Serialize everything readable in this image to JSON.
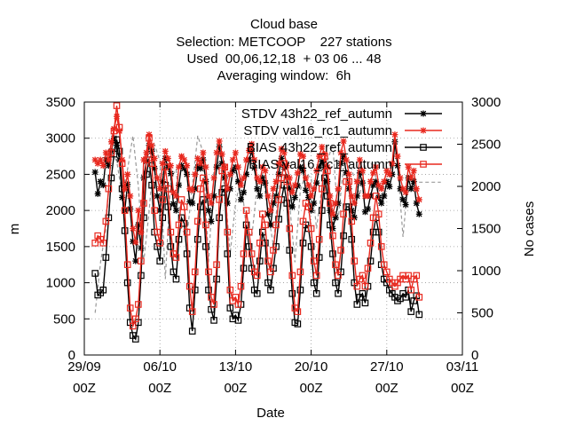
{
  "title_lines": [
    "Cloud base",
    "Selection: METCOOP    227 stations",
    "Used  00,06,12,18  + 03 06 ... 48",
    "Averaging window:  6h"
  ],
  "chart_data": {
    "type": "line",
    "xlabel": "Date",
    "ylabel": "m",
    "y2label": "No cases",
    "x_start": "2017-09-29 00Z",
    "x_end": "2017-11-03 00Z",
    "x_ticks": [
      {
        "date": "29/09",
        "time": "00Z",
        "day": 0
      },
      {
        "date": "06/10",
        "time": "00Z",
        "day": 7
      },
      {
        "date": "13/10",
        "time": "00Z",
        "day": 14
      },
      {
        "date": "20/10",
        "time": "00Z",
        "day": 21
      },
      {
        "date": "27/10",
        "time": "00Z",
        "day": 28
      },
      {
        "date": "03/11",
        "time": "00Z",
        "day": 35
      }
    ],
    "ylim": [
      0,
      3500
    ],
    "yticks": [
      0,
      500,
      1000,
      1500,
      2000,
      2500,
      3000,
      3500
    ],
    "y2lim": [
      0,
      3000
    ],
    "y2ticks": [
      0,
      500,
      1000,
      1500,
      2000,
      2500,
      3000
    ],
    "grid": true,
    "legend_position": "top-right",
    "series": [
      {
        "name": "STDV 43h22_ref_autumn",
        "color": "#000000",
        "marker": "star",
        "axis": "y",
        "x": [
          1.0,
          1.25,
          1.5,
          1.75,
          2.0,
          2.25,
          2.5,
          2.75,
          3.0,
          3.25,
          3.5,
          3.75,
          4.0,
          4.25,
          4.5,
          4.75,
          5.0,
          5.25,
          5.5,
          5.75,
          6.0,
          6.25,
          6.5,
          6.75,
          7.0,
          7.25,
          7.5,
          7.75,
          8.0,
          8.25,
          8.5,
          8.75,
          9.0,
          9.25,
          9.5,
          9.75,
          10.0,
          10.25,
          10.5,
          10.75,
          11.0,
          11.25,
          11.5,
          11.75,
          12.0,
          12.25,
          12.5,
          12.75,
          13.0,
          13.25,
          13.5,
          13.75,
          14.0,
          14.25,
          14.5,
          14.75,
          15.0,
          15.25,
          15.5,
          15.75,
          16.0,
          16.25,
          16.5,
          16.75,
          17.0,
          17.25,
          17.5,
          17.75,
          18.0,
          18.25,
          18.5,
          18.75,
          19.0,
          19.25,
          19.5,
          19.75,
          20.0,
          20.25,
          20.5,
          20.75,
          21.0,
          21.25,
          21.5,
          21.75,
          22.0,
          22.25,
          22.5,
          22.75,
          23.0,
          23.25,
          23.5,
          23.75,
          24.0,
          24.25,
          24.5,
          24.75,
          25.0,
          25.25,
          25.5,
          25.75,
          26.0,
          26.25,
          26.5,
          26.75,
          27.0,
          27.25,
          27.5,
          27.75,
          28.0,
          28.25,
          28.5,
          28.75,
          29.0,
          29.25,
          29.5,
          29.75,
          30.0,
          30.25,
          30.5,
          30.75,
          31.0
        ],
        "values": [
          2530,
          2230,
          2400,
          2350,
          2700,
          2620,
          2820,
          3000,
          2900,
          2700,
          2180,
          2000,
          2360,
          2020,
          1570,
          1300,
          1800,
          1480,
          2450,
          2680,
          2900,
          2820,
          2580,
          2200,
          2000,
          2400,
          2720,
          2600,
          2510,
          2090,
          2000,
          2350,
          2620,
          2580,
          2500,
          2120,
          2100,
          2300,
          2600,
          2580,
          2700,
          2400,
          2000,
          1850,
          2200,
          2600,
          2880,
          2650,
          2450,
          2100,
          2300,
          2550,
          2600,
          2400,
          2150,
          2250,
          2500,
          2700,
          2820,
          2590,
          2300,
          2200,
          2450,
          2380,
          1950,
          1800,
          2100,
          2200,
          2500,
          2720,
          2600,
          2460,
          2300,
          2050,
          2180,
          2340,
          2600,
          2550,
          2280,
          2180,
          2000,
          2100,
          2380,
          2600,
          2680,
          2600,
          2400,
          2000,
          1750,
          1900,
          2100,
          2650,
          2750,
          2520,
          2300,
          2000,
          1900,
          2200,
          2520,
          2380,
          1980,
          2020,
          2200,
          2350,
          2400,
          2180,
          2100,
          2200,
          2400,
          2330,
          2500,
          2950,
          2620,
          2300,
          2150,
          2080,
          2450,
          2300,
          2400,
          2100,
          1950
        ]
      },
      {
        "name": "STDV val16_rc1_autumn",
        "color": "#e8281e",
        "marker": "star",
        "axis": "y",
        "x": [
          1.0,
          1.25,
          1.5,
          1.75,
          2.0,
          2.25,
          2.5,
          2.75,
          3.0,
          3.25,
          3.5,
          3.75,
          4.0,
          4.25,
          4.5,
          4.75,
          5.0,
          5.25,
          5.5,
          5.75,
          6.0,
          6.25,
          6.5,
          6.75,
          7.0,
          7.25,
          7.5,
          7.75,
          8.0,
          8.25,
          8.5,
          8.75,
          9.0,
          9.25,
          9.5,
          9.75,
          10.0,
          10.25,
          10.5,
          10.75,
          11.0,
          11.25,
          11.5,
          11.75,
          12.0,
          12.25,
          12.5,
          12.75,
          13.0,
          13.25,
          13.5,
          13.75,
          14.0,
          14.25,
          14.5,
          14.75,
          15.0,
          15.25,
          15.5,
          15.75,
          16.0,
          16.25,
          16.5,
          16.75,
          17.0,
          17.25,
          17.5,
          17.75,
          18.0,
          18.25,
          18.5,
          18.75,
          19.0,
          19.25,
          19.5,
          19.75,
          20.0,
          20.25,
          20.5,
          20.75,
          21.0,
          21.25,
          21.5,
          21.75,
          22.0,
          22.25,
          22.5,
          22.75,
          23.0,
          23.25,
          23.5,
          23.75,
          24.0,
          24.25,
          24.5,
          24.75,
          25.0,
          25.25,
          25.5,
          25.75,
          26.0,
          26.25,
          26.5,
          26.75,
          27.0,
          27.25,
          27.5,
          27.75,
          28.0,
          28.25,
          28.5,
          28.75,
          29.0,
          29.25,
          29.5,
          29.75,
          30.0,
          30.25,
          30.5,
          30.75,
          31.0
        ],
        "values": [
          2700,
          2650,
          2700,
          2620,
          2800,
          2700,
          2950,
          3130,
          3300,
          3100,
          2700,
          2300,
          2500,
          2200,
          1750,
          1560,
          2000,
          1700,
          2700,
          2800,
          3050,
          2900,
          2720,
          2450,
          2300,
          2650,
          2820,
          2720,
          2620,
          2250,
          2200,
          2600,
          2750,
          2700,
          2620,
          2300,
          2280,
          2500,
          2720,
          2650,
          2800,
          2600,
          2200,
          2100,
          2450,
          2800,
          2960,
          2780,
          2600,
          2300,
          2500,
          2700,
          2800,
          2600,
          2350,
          2450,
          2700,
          2830,
          2920,
          2700,
          2450,
          2400,
          2600,
          2550,
          2200,
          2000,
          2300,
          2400,
          2650,
          2850,
          2800,
          2620,
          2450,
          2250,
          2350,
          2520,
          2780,
          2750,
          2450,
          2350,
          2200,
          2300,
          2550,
          2750,
          2880,
          2780,
          2600,
          2200,
          1950,
          2100,
          2300,
          2800,
          2960,
          2700,
          2500,
          2200,
          2100,
          2400,
          2700,
          2550,
          2200,
          2200,
          2400,
          2520,
          2600,
          2350,
          2300,
          2400,
          2550,
          2500,
          2650,
          3050,
          2750,
          2450,
          2300,
          2250,
          2600,
          2450,
          2550,
          2300,
          2150
        ]
      },
      {
        "name": "BIAS 43h22_ref_autumn",
        "color": "#000000",
        "marker": "square",
        "axis": "y",
        "x": [
          1.0,
          1.25,
          1.5,
          1.75,
          2.0,
          2.25,
          2.5,
          2.75,
          3.0,
          3.25,
          3.5,
          3.75,
          4.0,
          4.25,
          4.5,
          4.75,
          5.0,
          5.25,
          5.5,
          5.75,
          6.0,
          6.25,
          6.5,
          6.75,
          7.0,
          7.25,
          7.5,
          7.75,
          8.0,
          8.25,
          8.5,
          8.75,
          9.0,
          9.25,
          9.5,
          9.75,
          10.0,
          10.25,
          10.5,
          10.75,
          11.0,
          11.25,
          11.5,
          11.75,
          12.0,
          12.25,
          12.5,
          12.75,
          13.0,
          13.25,
          13.5,
          13.75,
          14.0,
          14.25,
          14.5,
          14.75,
          15.0,
          15.25,
          15.5,
          15.75,
          16.0,
          16.25,
          16.5,
          16.75,
          17.0,
          17.25,
          17.5,
          17.75,
          18.0,
          18.25,
          18.5,
          18.75,
          19.0,
          19.25,
          19.5,
          19.75,
          20.0,
          20.25,
          20.5,
          20.75,
          21.0,
          21.25,
          21.5,
          21.75,
          22.0,
          22.25,
          22.5,
          22.75,
          23.0,
          23.25,
          23.5,
          23.75,
          24.0,
          24.25,
          24.5,
          24.75,
          25.0,
          25.25,
          25.5,
          25.75,
          26.0,
          26.25,
          26.5,
          26.75,
          27.0,
          27.25,
          27.5,
          27.75,
          28.0,
          28.25,
          28.5,
          28.75,
          29.0,
          29.25,
          29.5,
          29.75,
          30.0,
          30.25,
          30.5,
          30.75,
          31.0
        ],
        "values": [
          1130,
          830,
          860,
          900,
          1350,
          1900,
          2450,
          2780,
          2980,
          2820,
          2300,
          1720,
          1000,
          450,
          270,
          220,
          450,
          1100,
          1900,
          2500,
          2700,
          2350,
          1700,
          1500,
          1300,
          1900,
          2350,
          2050,
          1500,
          1150,
          1050,
          1600,
          1900,
          1820,
          1400,
          650,
          330,
          900,
          1600,
          2050,
          2150,
          1500,
          900,
          630,
          480,
          1050,
          1900,
          2250,
          2300,
          1400,
          650,
          500,
          550,
          480,
          700,
          1200,
          1800,
          1500,
          1200,
          900,
          850,
          1300,
          1700,
          1550,
          1000,
          900,
          1200,
          1500,
          1880,
          2150,
          2350,
          2100,
          1450,
          850,
          450,
          430,
          900,
          1550,
          1800,
          1750,
          1500,
          1000,
          850,
          1350,
          2000,
          2450,
          2200,
          1800,
          1400,
          1000,
          850,
          1150,
          1650,
          2050,
          2050,
          1600,
          1000,
          700,
          800,
          850,
          720,
          950,
          1300,
          1700,
          1900,
          1700,
          1250,
          1050,
          1000,
          900,
          850,
          800,
          750,
          780,
          850,
          800,
          900,
          600,
          750,
          820,
          560
        ]
      },
      {
        "name": "BIAS val16_rc1_autumn",
        "color": "#e8281e",
        "marker": "square",
        "axis": "y",
        "x": [
          1.0,
          1.25,
          1.5,
          1.75,
          2.0,
          2.25,
          2.5,
          2.75,
          3.0,
          3.25,
          3.5,
          3.75,
          4.0,
          4.25,
          4.5,
          4.75,
          5.0,
          5.25,
          5.5,
          5.75,
          6.0,
          6.25,
          6.5,
          6.75,
          7.0,
          7.25,
          7.5,
          7.75,
          8.0,
          8.25,
          8.5,
          8.75,
          9.0,
          9.25,
          9.5,
          9.75,
          10.0,
          10.25,
          10.5,
          10.75,
          11.0,
          11.25,
          11.5,
          11.75,
          12.0,
          12.25,
          12.5,
          12.75,
          13.0,
          13.25,
          13.5,
          13.75,
          14.0,
          14.25,
          14.5,
          14.75,
          15.0,
          15.25,
          15.5,
          15.75,
          16.0,
          16.25,
          16.5,
          16.75,
          17.0,
          17.25,
          17.5,
          17.75,
          18.0,
          18.25,
          18.5,
          18.75,
          19.0,
          19.25,
          19.5,
          19.75,
          20.0,
          20.25,
          20.5,
          20.75,
          21.0,
          21.25,
          21.5,
          21.75,
          22.0,
          22.25,
          22.5,
          22.75,
          23.0,
          23.25,
          23.5,
          23.75,
          24.0,
          24.25,
          24.5,
          24.75,
          25.0,
          25.25,
          25.5,
          25.75,
          26.0,
          26.25,
          26.5,
          26.75,
          27.0,
          27.25,
          27.5,
          27.75,
          28.0,
          28.25,
          28.5,
          28.75,
          29.0,
          29.25,
          29.5,
          29.75,
          30.0,
          30.25,
          30.5,
          30.75,
          31.0
        ],
        "values": [
          1550,
          1650,
          1600,
          1550,
          1850,
          2300,
          2800,
          3100,
          3450,
          3150,
          2650,
          2000,
          1250,
          650,
          400,
          500,
          700,
          1300,
          2100,
          2700,
          3000,
          2650,
          2000,
          1700,
          1550,
          2150,
          2600,
          2300,
          1700,
          1400,
          1350,
          1800,
          2150,
          2050,
          1700,
          950,
          600,
          1150,
          1850,
          2300,
          2450,
          1800,
          1150,
          800,
          700,
          1250,
          2150,
          2550,
          2600,
          1700,
          900,
          750,
          800,
          700,
          950,
          1400,
          2000,
          1700,
          1400,
          1150,
          1100,
          1550,
          1950,
          1800,
          1300,
          1150,
          1450,
          1800,
          2150,
          2450,
          2650,
          2400,
          1750,
          1100,
          650,
          600,
          1150,
          1850,
          2100,
          2050,
          1750,
          1300,
          1100,
          1600,
          2300,
          2750,
          2550,
          2100,
          1650,
          1250,
          1100,
          1450,
          1950,
          2400,
          2400,
          1850,
          1300,
          950,
          1050,
          1100,
          950,
          1200,
          1550,
          1900,
          2200,
          1950,
          1500,
          1250,
          1150,
          1050,
          1000,
          950,
          1000,
          1050,
          1100,
          1050,
          1100,
          900,
          1050,
          1100,
          800
        ]
      },
      {
        "name": "No cases",
        "color": "#999999",
        "marker": "none",
        "dashed": true,
        "axis": "y2",
        "x": [
          1.0,
          1.5,
          2.0,
          2.5,
          3.0,
          3.5,
          4.0,
          4.5,
          5.0,
          5.5,
          6.0,
          6.5,
          7.0,
          7.5,
          8.0,
          8.5,
          9.0,
          9.5,
          10.0,
          10.5,
          11.0,
          11.5,
          12.0,
          12.5,
          13.0,
          13.5,
          14.0,
          14.5,
          15.0,
          15.5,
          16.0,
          16.5,
          17.0,
          17.5,
          18.0,
          18.5,
          19.0,
          19.5,
          20.0,
          20.5,
          21.0,
          21.5,
          22.0,
          22.5,
          23.0,
          23.5,
          24.0,
          24.5,
          25.0,
          25.5,
          26.0,
          26.5,
          27.0,
          27.5,
          28.0,
          28.5,
          29.0,
          29.5,
          30.0,
          30.5,
          31.0,
          31.5,
          32.0,
          32.5,
          33.0
        ],
        "values": [
          500,
          1100,
          1500,
          2400,
          2300,
          1900,
          2200,
          2600,
          2000,
          1100,
          1700,
          2500,
          2300,
          900,
          2100,
          2200,
          1500,
          1400,
          2000,
          2600,
          2400,
          1100,
          2200,
          2300,
          2000,
          1200,
          1800,
          2100,
          1500,
          1400,
          2000,
          2150,
          1700,
          1300,
          2000,
          2200,
          1800,
          1100,
          1950,
          2150,
          2100,
          1500,
          2000,
          2300,
          2500,
          1600,
          2250,
          2300,
          2100,
          1900,
          2250,
          2300,
          2100,
          1800,
          2200,
          2300,
          2250,
          1400,
          2100,
          2050,
          2050,
          2050,
          2050,
          2050,
          2050
        ]
      }
    ]
  }
}
